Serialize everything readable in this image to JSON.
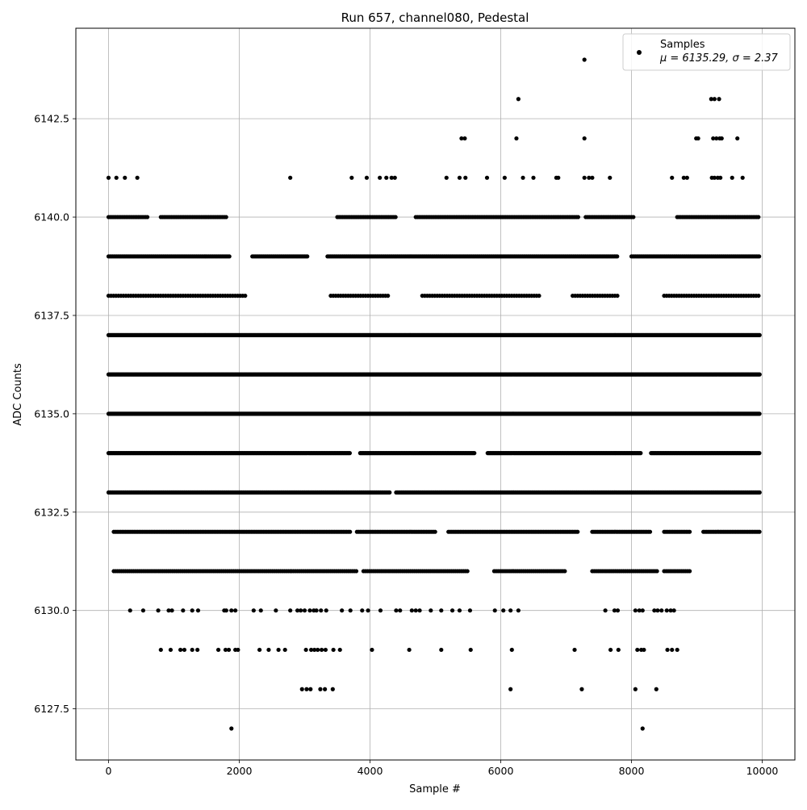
{
  "chart_data": {
    "type": "scatter",
    "title": "Run 657, channel080, Pedestal",
    "xlabel": "Sample #",
    "ylabel": "ADC Counts",
    "xlim": [
      -500,
      10500
    ],
    "ylim": [
      6126.2,
      6144.8
    ],
    "x_ticks": [
      0,
      2000,
      4000,
      6000,
      8000,
      10000
    ],
    "x_tick_labels": [
      "0",
      "2000",
      "4000",
      "6000",
      "8000",
      "10000"
    ],
    "y_ticks": [
      6127.5,
      6130.0,
      6132.5,
      6135.0,
      6137.5,
      6140.0,
      6142.5
    ],
    "y_tick_labels": [
      "6127.5",
      "6130.0",
      "6132.5",
      "6135.0",
      "6137.5",
      "6140.0",
      "6142.5"
    ],
    "grid": true,
    "legend": {
      "placement": "top-right",
      "label_line1": "Samples",
      "label_line2": "μ = 6135.29, σ = 2.37"
    },
    "marker_color": "#000000",
    "series": [
      {
        "name": "Samples",
        "levels": [
          {
            "y": 6135,
            "ranges": [
              [
                0,
                9960
              ]
            ],
            "step": 13
          },
          {
            "y": 6136,
            "ranges": [
              [
                0,
                9960
              ]
            ],
            "step": 15
          },
          {
            "y": 6137,
            "ranges": [
              [
                0,
                9960
              ]
            ],
            "step": 15
          },
          {
            "y": 6134,
            "ranges": [
              [
                0,
                3700
              ],
              [
                3850,
                5600
              ],
              [
                5800,
                8150
              ],
              [
                8300,
                9960
              ]
            ],
            "step": 18
          },
          {
            "y": 6133,
            "ranges": [
              [
                0,
                4300
              ],
              [
                4400,
                9960
              ]
            ],
            "step": 20
          },
          {
            "y": 6139,
            "ranges": [
              [
                0,
                1850
              ],
              [
                2200,
                3050
              ],
              [
                3350,
                7800
              ],
              [
                8000,
                9960
              ]
            ],
            "step": 21
          },
          {
            "y": 6132,
            "ranges": [
              [
                80,
                3700
              ],
              [
                3800,
                5000
              ],
              [
                5200,
                7200
              ],
              [
                7400,
                8300
              ],
              [
                8500,
                8900
              ],
              [
                9100,
                9960
              ]
            ],
            "step": 26
          },
          {
            "y": 6131,
            "ranges": [
              [
                80,
                2800
              ],
              [
                2800,
                3800
              ],
              [
                3900,
                5500
              ],
              [
                5900,
                7000
              ],
              [
                7400,
                8400
              ],
              [
                8500,
                8900
              ]
            ],
            "step": 30
          },
          {
            "y": 6138,
            "ranges": [
              [
                0,
                2100
              ],
              [
                3400,
                4300
              ],
              [
                4800,
                6600
              ],
              [
                7100,
                7800
              ],
              [
                8500,
                9960
              ]
            ],
            "step": 38
          },
          {
            "y": 6140,
            "ranges": [
              [
                0,
                600
              ],
              [
                800,
                1800
              ],
              [
                3500,
                4400
              ],
              [
                4700,
                7200
              ],
              [
                7300,
                8050
              ],
              [
                8700,
                9960
              ]
            ],
            "step": 27
          }
        ],
        "points": [
          [
            0,
            6141
          ],
          [
            120,
            6141
          ],
          [
            250,
            6141
          ],
          [
            440,
            6141
          ],
          [
            2780,
            6141
          ],
          [
            3720,
            6141
          ],
          [
            3950,
            6141
          ],
          [
            4150,
            6141
          ],
          [
            4250,
            6141
          ],
          [
            4330,
            6141
          ],
          [
            4380,
            6141
          ],
          [
            5170,
            6141
          ],
          [
            5370,
            6141
          ],
          [
            5460,
            6141
          ],
          [
            5790,
            6141
          ],
          [
            6060,
            6141
          ],
          [
            6340,
            6141
          ],
          [
            6500,
            6141
          ],
          [
            6850,
            6141
          ],
          [
            6880,
            6141
          ],
          [
            7280,
            6141
          ],
          [
            7350,
            6141
          ],
          [
            7400,
            6141
          ],
          [
            7670,
            6141
          ],
          [
            8620,
            6141
          ],
          [
            8800,
            6141
          ],
          [
            8850,
            6141
          ],
          [
            9230,
            6141
          ],
          [
            9270,
            6141
          ],
          [
            9320,
            6141
          ],
          [
            9360,
            6141
          ],
          [
            9540,
            6141
          ],
          [
            9700,
            6141
          ],
          [
            5400,
            6142
          ],
          [
            5450,
            6142
          ],
          [
            6240,
            6142
          ],
          [
            7280,
            6142
          ],
          [
            8990,
            6142
          ],
          [
            9020,
            6142
          ],
          [
            9250,
            6142
          ],
          [
            9300,
            6142
          ],
          [
            9350,
            6142
          ],
          [
            9380,
            6142
          ],
          [
            9620,
            6142
          ],
          [
            6270,
            6143
          ],
          [
            9220,
            6143
          ],
          [
            9270,
            6143
          ],
          [
            9340,
            6143
          ],
          [
            7280,
            6144
          ],
          [
            330,
            6130
          ],
          [
            530,
            6130
          ],
          [
            760,
            6130
          ],
          [
            920,
            6130
          ],
          [
            970,
            6130
          ],
          [
            1140,
            6130
          ],
          [
            1280,
            6130
          ],
          [
            1370,
            6130
          ],
          [
            1770,
            6130
          ],
          [
            1800,
            6130
          ],
          [
            1880,
            6130
          ],
          [
            1940,
            6130
          ],
          [
            2220,
            6130
          ],
          [
            2330,
            6130
          ],
          [
            2560,
            6130
          ],
          [
            2780,
            6130
          ],
          [
            2890,
            6130
          ],
          [
            2940,
            6130
          ],
          [
            3000,
            6130
          ],
          [
            3080,
            6130
          ],
          [
            3140,
            6130
          ],
          [
            3180,
            6130
          ],
          [
            3250,
            6130
          ],
          [
            3330,
            6130
          ],
          [
            3570,
            6130
          ],
          [
            3700,
            6130
          ],
          [
            3880,
            6130
          ],
          [
            3970,
            6130
          ],
          [
            4160,
            6130
          ],
          [
            4400,
            6130
          ],
          [
            4460,
            6130
          ],
          [
            4640,
            6130
          ],
          [
            4700,
            6130
          ],
          [
            4760,
            6130
          ],
          [
            4930,
            6130
          ],
          [
            5090,
            6130
          ],
          [
            5260,
            6130
          ],
          [
            5370,
            6130
          ],
          [
            5530,
            6130
          ],
          [
            5910,
            6130
          ],
          [
            6040,
            6130
          ],
          [
            6150,
            6130
          ],
          [
            6270,
            6130
          ],
          [
            7600,
            6130
          ],
          [
            7740,
            6130
          ],
          [
            7790,
            6130
          ],
          [
            8060,
            6130
          ],
          [
            8120,
            6130
          ],
          [
            8170,
            6130
          ],
          [
            8350,
            6130
          ],
          [
            8400,
            6130
          ],
          [
            8460,
            6130
          ],
          [
            8540,
            6130
          ],
          [
            8600,
            6130
          ],
          [
            8650,
            6130
          ],
          [
            800,
            6129
          ],
          [
            950,
            6129
          ],
          [
            1100,
            6129
          ],
          [
            1160,
            6129
          ],
          [
            1280,
            6129
          ],
          [
            1360,
            6129
          ],
          [
            1680,
            6129
          ],
          [
            1790,
            6129
          ],
          [
            1840,
            6129
          ],
          [
            1940,
            6129
          ],
          [
            1980,
            6129
          ],
          [
            2310,
            6129
          ],
          [
            2450,
            6129
          ],
          [
            2600,
            6129
          ],
          [
            2700,
            6129
          ],
          [
            3020,
            6129
          ],
          [
            3100,
            6129
          ],
          [
            3150,
            6129
          ],
          [
            3200,
            6129
          ],
          [
            3260,
            6129
          ],
          [
            3320,
            6129
          ],
          [
            3440,
            6129
          ],
          [
            3540,
            6129
          ],
          [
            4030,
            6129
          ],
          [
            4600,
            6129
          ],
          [
            5090,
            6129
          ],
          [
            5540,
            6129
          ],
          [
            6170,
            6129
          ],
          [
            7130,
            6129
          ],
          [
            7680,
            6129
          ],
          [
            7800,
            6129
          ],
          [
            8090,
            6129
          ],
          [
            8150,
            6129
          ],
          [
            8190,
            6129
          ],
          [
            8550,
            6129
          ],
          [
            8620,
            6129
          ],
          [
            8700,
            6129
          ],
          [
            2960,
            6128
          ],
          [
            3030,
            6128
          ],
          [
            3090,
            6128
          ],
          [
            3240,
            6128
          ],
          [
            3310,
            6128
          ],
          [
            3430,
            6128
          ],
          [
            6150,
            6128
          ],
          [
            7240,
            6128
          ],
          [
            8060,
            6128
          ],
          [
            8380,
            6128
          ],
          [
            1880,
            6127
          ],
          [
            8170,
            6127
          ]
        ]
      }
    ]
  }
}
